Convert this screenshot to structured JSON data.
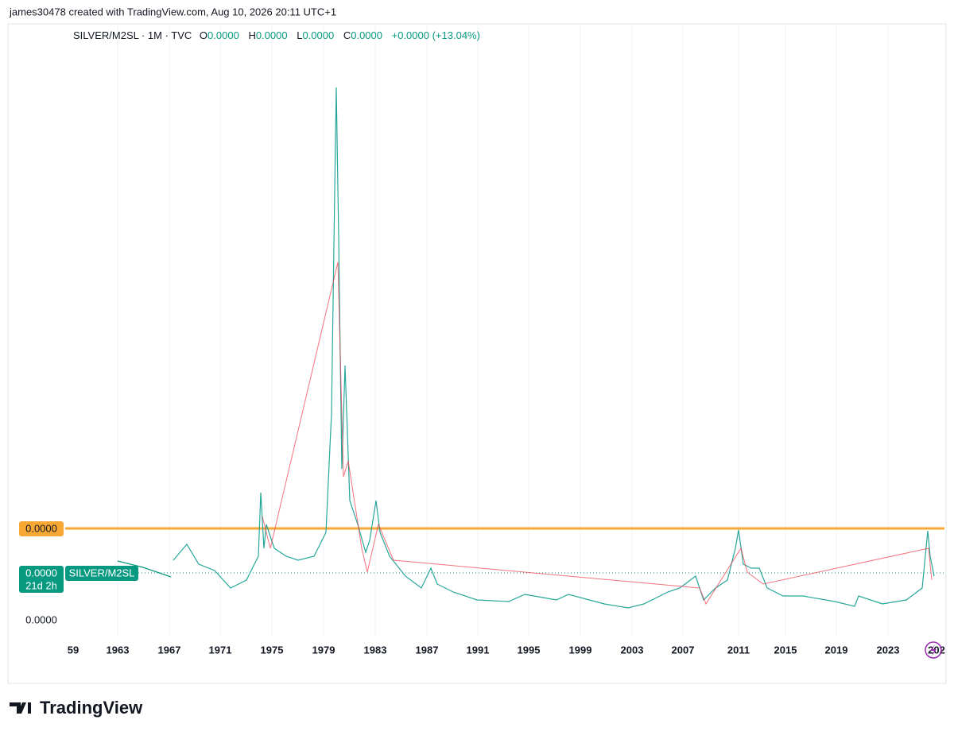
{
  "header": {
    "attribution": "james30478 created with TradingView.com, Aug 10, 2026 20:11 UTC+1"
  },
  "legend": {
    "symbol": "SILVER/M2SL · 1M · TVC",
    "open_label": "O",
    "open": "0.0000",
    "high_label": "H",
    "high": "0.0000",
    "low_label": "L",
    "low": "0.0000",
    "close_label": "C",
    "close": "0.0000",
    "change": "+0.0000 (+13.04%)"
  },
  "price_scale": {
    "alert_label": "0.0000",
    "last_price": "0.0000",
    "countdown": "21d 2h",
    "series_tag": "SILVER/M2SL",
    "axis_label": "0.0000"
  },
  "time_scale": {
    "labels": [
      "59",
      "1963",
      "1967",
      "1971",
      "1975",
      "1979",
      "1983",
      "1987",
      "1991",
      "1995",
      "1999",
      "2003",
      "2007",
      "2011",
      "2015",
      "2019",
      "2023",
      "202"
    ]
  },
  "footer": {
    "brand": "TradingView"
  }
}
